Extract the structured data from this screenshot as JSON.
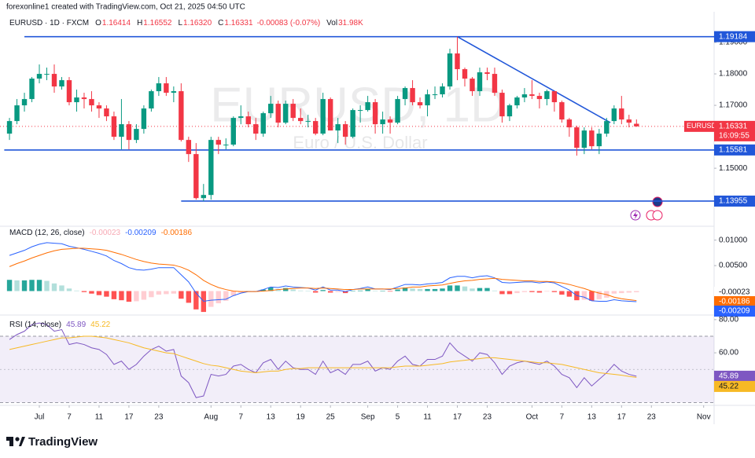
{
  "header": "forexonline1 created with TradingView.com, Oct 21, 2025 04:50 UTC",
  "chart_data": {
    "type": "candlestick",
    "symbol": "EURUSD · 1D · FXCM",
    "legend": [
      {
        "key": "O",
        "text": "1.16414"
      },
      {
        "key": "H",
        "text": "1.16552"
      },
      {
        "key": "L",
        "text": "1.16320"
      },
      {
        "key": "C",
        "text": "1.16331"
      }
    ],
    "change": "-0.00083 (-0.07%)",
    "volume_key": "Vol",
    "volume": "31.98K",
    "watermark": "EURUSD, 1D",
    "description": "Euro / U.S. Dollar",
    "x": [
      0,
      1,
      2,
      3,
      4,
      5,
      6,
      7,
      8,
      9,
      10,
      11,
      12,
      13,
      14,
      15,
      16,
      17,
      18,
      19,
      20,
      21,
      22,
      23,
      24,
      25,
      26,
      27,
      28,
      29,
      30,
      31,
      32,
      33,
      34,
      35,
      36,
      37,
      38,
      39,
      40,
      41,
      42,
      43,
      44,
      45,
      46,
      47,
      48,
      49,
      50,
      51,
      52,
      53,
      54,
      55,
      56,
      57,
      58,
      59,
      60,
      61,
      62,
      63,
      64,
      65,
      66,
      67,
      68,
      69,
      70,
      71,
      72,
      73,
      74,
      75,
      76,
      77,
      78,
      79,
      80,
      81,
      82,
      83,
      84
    ],
    "open": [
      1.161,
      1.165,
      1.17,
      1.172,
      1.1785,
      1.18,
      1.18,
      1.176,
      1.178,
      1.171,
      1.1725,
      1.172,
      1.17,
      1.169,
      1.1665,
      1.16,
      1.164,
      1.159,
      1.1625,
      1.169,
      1.1745,
      1.177,
      1.174,
      1.1745,
      1.159,
      1.1545,
      1.1405,
      1.1415,
      1.159,
      1.1575,
      1.1575,
      1.166,
      1.1665,
      1.164,
      1.161,
      1.1675,
      1.1705,
      1.1645,
      1.1705,
      1.166,
      1.165,
      1.165,
      1.161,
      1.172,
      1.162,
      1.164,
      1.16,
      1.1685,
      1.1685,
      1.171,
      1.164,
      1.1655,
      1.1645,
      1.172,
      1.1755,
      1.171,
      1.17,
      1.1735,
      1.1735,
      1.176,
      1.1865,
      1.1815,
      1.1785,
      1.1745,
      1.1805,
      1.18,
      1.174,
      1.1665,
      1.17,
      1.1725,
      1.1735,
      1.173,
      1.172,
      1.1745,
      1.171,
      1.1655,
      1.163,
      1.1565,
      1.162,
      1.157,
      1.161,
      1.165,
      1.169,
      1.1655,
      1.16414
    ],
    "high": [
      1.166,
      1.172,
      1.174,
      1.179,
      1.183,
      1.182,
      1.183,
      1.179,
      1.179,
      1.175,
      1.174,
      1.1745,
      1.171,
      1.17,
      1.168,
      1.172,
      1.165,
      1.164,
      1.17,
      1.175,
      1.179,
      1.179,
      1.176,
      1.177,
      1.16,
      1.158,
      1.145,
      1.16,
      1.16,
      1.1595,
      1.1665,
      1.17,
      1.168,
      1.166,
      1.168,
      1.173,
      1.1715,
      1.1715,
      1.172,
      1.169,
      1.167,
      1.166,
      1.174,
      1.1725,
      1.166,
      1.165,
      1.169,
      1.17,
      1.173,
      1.172,
      1.168,
      1.1665,
      1.173,
      1.176,
      1.178,
      1.1725,
      1.175,
      1.176,
      1.177,
      1.188,
      1.19184,
      1.182,
      1.179,
      1.182,
      1.182,
      1.182,
      1.175,
      1.1705,
      1.173,
      1.1755,
      1.178,
      1.174,
      1.175,
      1.1745,
      1.1715,
      1.166,
      1.1635,
      1.163,
      1.163,
      1.1625,
      1.166,
      1.17,
      1.173,
      1.167,
      1.16552
    ],
    "low": [
      1.159,
      1.164,
      1.168,
      1.171,
      1.177,
      1.178,
      1.174,
      1.175,
      1.17,
      1.168,
      1.169,
      1.168,
      1.166,
      1.165,
      1.159,
      1.156,
      1.156,
      1.158,
      1.161,
      1.168,
      1.173,
      1.173,
      1.171,
      1.1585,
      1.152,
      1.14,
      1.13955,
      1.14,
      1.1545,
      1.156,
      1.157,
      1.164,
      1.163,
      1.159,
      1.16,
      1.166,
      1.163,
      1.164,
      1.165,
      1.164,
      1.163,
      1.1605,
      1.1605,
      1.162,
      1.158,
      1.1575,
      1.1595,
      1.1645,
      1.168,
      1.161,
      1.161,
      1.161,
      1.164,
      1.17,
      1.17,
      1.169,
      1.1665,
      1.172,
      1.1725,
      1.175,
      1.178,
      1.176,
      1.173,
      1.173,
      1.178,
      1.173,
      1.1645,
      1.165,
      1.169,
      1.171,
      1.172,
      1.169,
      1.17,
      1.168,
      1.1645,
      1.16,
      1.154,
      1.1545,
      1.156,
      1.1545,
      1.16,
      1.164,
      1.164,
      1.163,
      1.1632
    ],
    "close": [
      1.165,
      1.17,
      1.172,
      1.1785,
      1.18,
      1.18,
      1.176,
      1.178,
      1.171,
      1.1725,
      1.172,
      1.17,
      1.169,
      1.1665,
      1.16,
      1.164,
      1.159,
      1.1625,
      1.169,
      1.1745,
      1.177,
      1.174,
      1.1745,
      1.159,
      1.1545,
      1.1405,
      1.1415,
      1.159,
      1.1575,
      1.1575,
      1.166,
      1.1665,
      1.164,
      1.161,
      1.1675,
      1.1705,
      1.1645,
      1.1705,
      1.166,
      1.165,
      1.165,
      1.161,
      1.172,
      1.162,
      1.164,
      1.16,
      1.1685,
      1.1685,
      1.171,
      1.164,
      1.1655,
      1.1645,
      1.172,
      1.1755,
      1.171,
      1.17,
      1.1735,
      1.1735,
      1.176,
      1.1865,
      1.1815,
      1.1785,
      1.1745,
      1.1805,
      1.18,
      1.174,
      1.1665,
      1.17,
      1.1725,
      1.1735,
      1.173,
      1.172,
      1.1745,
      1.171,
      1.1655,
      1.163,
      1.1565,
      1.162,
      1.157,
      1.161,
      1.165,
      1.169,
      1.1655,
      1.1645,
      1.16331
    ],
    "up_color": "#089981",
    "down_color": "#f23645",
    "xlim": [
      -1.27,
      94.4
    ],
    "xticks": [
      {
        "value": 4,
        "label": "Jul"
      },
      {
        "value": 8,
        "label": "7"
      },
      {
        "value": 12,
        "label": "11"
      },
      {
        "value": 16,
        "label": "17"
      },
      {
        "value": 20,
        "label": "23"
      },
      {
        "value": 27,
        "label": "Aug"
      },
      {
        "value": 31,
        "label": "7"
      },
      {
        "value": 35,
        "label": "13"
      },
      {
        "value": 39,
        "label": "19"
      },
      {
        "value": 43,
        "label": "25"
      },
      {
        "value": 48,
        "label": "Sep"
      },
      {
        "value": 52,
        "label": "5"
      },
      {
        "value": 56,
        "label": "11"
      },
      {
        "value": 60,
        "label": "17"
      },
      {
        "value": 64,
        "label": "23"
      },
      {
        "value": 70,
        "label": "Oct"
      },
      {
        "value": 74,
        "label": "7"
      },
      {
        "value": 78,
        "label": "13"
      },
      {
        "value": 82,
        "label": "17"
      },
      {
        "value": 86,
        "label": "23"
      },
      {
        "value": 93,
        "label": "Nov"
      }
    ],
    "ylim": [
      1.1318,
      1.199
    ],
    "yticks": [
      {
        "value": 1.19,
        "label": "1.19000"
      },
      {
        "value": 1.18,
        "label": "1.18000"
      },
      {
        "value": 1.17,
        "label": "1.17000"
      },
      {
        "value": 1.15,
        "label": "1.15000"
      }
    ],
    "levels": [
      {
        "value": 1.19184,
        "from": 2
      },
      {
        "value": 1.15581,
        "from": -0.7
      },
      {
        "value": 1.13955,
        "from": 23
      }
    ],
    "level_color": "#2157d9",
    "trendline": {
      "x": [
        60,
        80.5
      ],
      "y": [
        1.19184,
        1.1645
      ]
    },
    "last": {
      "symbol": "EURUSD",
      "price": 1.16331,
      "countdown": "16:09:55"
    },
    "indicators": [
      {
        "type": "macd",
        "title": "MACD (12, 26, close)",
        "ylim": [
          -0.00455,
          0.01242
        ],
        "yticks": [
          {
            "value": 0.01,
            "label": "0.01000"
          },
          {
            "value": 0.005,
            "label": "0.00500"
          }
        ],
        "histogram": {
          "colors": [
            "#26a69a",
            "#b2dfdb",
            "#ff5252",
            "#ffcdd2"
          ],
          "label_color": "#f7a9b4",
          "values": [
            0.0022,
            0.0021,
            0.0021,
            0.0022,
            0.0022,
            0.002,
            0.0015,
            0.0011,
            0.0005,
            0.0001,
            -0.0002,
            -0.0005,
            -0.0008,
            -0.0011,
            -0.0016,
            -0.0018,
            -0.0021,
            -0.002,
            -0.0017,
            -0.0012,
            -0.0007,
            -0.0006,
            -0.0005,
            -0.0015,
            -0.0023,
            -0.0036,
            -0.0041,
            -0.0031,
            -0.0024,
            -0.0019,
            -0.0009,
            -0.0003,
            0,
            0,
            0.0003,
            0.0007,
            0.0004,
            0.0006,
            0.0003,
            0.0001,
            0,
            -0.0003,
            0.0002,
            -0.0003,
            -0.0002,
            -0.0004,
            0,
            0.0001,
            0.0004,
            0,
            0,
            -0.0001,
            0.0003,
            0.0007,
            0.0005,
            0.0004,
            0.0004,
            0.0004,
            0.0005,
            0.0011,
            0.0011,
            0.0009,
            0.0005,
            0.0006,
            0.0006,
            0.0001,
            -0.0006,
            -0.0006,
            -0.0004,
            -0.0002,
            -0.0002,
            -0.0003,
            -0.0001,
            -0.0002,
            -0.0007,
            -0.0011,
            -0.0018,
            -0.0017,
            -0.0019,
            -0.0016,
            -0.0013,
            -0.0005,
            -0.0004,
            -0.0003,
            -0.00023
          ]
        },
        "series": [
          {
            "color": "#2962ff",
            "values": [
              0.007,
              0.0075,
              0.008,
              0.0087,
              0.0092,
              0.0095,
              0.0094,
              0.0093,
              0.0088,
              0.0085,
              0.0082,
              0.0078,
              0.0074,
              0.0069,
              0.006,
              0.0054,
              0.0046,
              0.0042,
              0.0041,
              0.0043,
              0.0046,
              0.0046,
              0.0046,
              0.0032,
              0.0018,
              -0.0004,
              -0.002,
              -0.0018,
              -0.0017,
              -0.0016,
              -0.0009,
              -0.0004,
              -0.0001,
              -0.0001,
              0.0003,
              0.0008,
              0.0007,
              0.001,
              0.0008,
              0.0007,
              0.0006,
              0.0002,
              0.0008,
              0.0002,
              0.0002,
              -0.0001,
              0.0003,
              0.0005,
              0.0008,
              0.0004,
              0.0004,
              0.0003,
              0.0008,
              0.0013,
              0.0013,
              0.0012,
              0.0014,
              0.0015,
              0.0017,
              0.0026,
              0.0029,
              0.0029,
              0.0026,
              0.0029,
              0.003,
              0.0026,
              0.0017,
              0.0016,
              0.0017,
              0.0018,
              0.0018,
              0.0016,
              0.0018,
              0.0016,
              0.0009,
              0.0002,
              -0.0009,
              -0.0012,
              -0.0019,
              -0.002,
              -0.002,
              -0.0017,
              -0.0019,
              -0.002,
              -0.00209
            ]
          },
          {
            "color": "#ff6d00",
            "values": [
              0.0048,
              0.0054,
              0.0059,
              0.0065,
              0.007,
              0.0075,
              0.0079,
              0.0082,
              0.0083,
              0.0084,
              0.0084,
              0.0083,
              0.0082,
              0.008,
              0.0076,
              0.0072,
              0.0067,
              0.0062,
              0.0058,
              0.0055,
              0.0053,
              0.0052,
              0.0051,
              0.0047,
              0.0041,
              0.0032,
              0.0021,
              0.0013,
              0.0007,
              0.0003,
              0.0,
              -0.0001,
              -0.0001,
              -0.0001,
              0.0,
              0.0001,
              0.0003,
              0.0004,
              0.0005,
              0.0006,
              0.0006,
              0.0005,
              0.0006,
              0.0005,
              0.0004,
              0.0003,
              0.0003,
              0.0004,
              0.0004,
              0.0004,
              0.0004,
              0.0004,
              0.0005,
              0.0006,
              0.0008,
              0.0008,
              0.001,
              0.0011,
              0.0012,
              0.0015,
              0.0018,
              0.002,
              0.0021,
              0.0023,
              0.0024,
              0.0025,
              0.0023,
              0.0022,
              0.0021,
              0.002,
              0.002,
              0.0019,
              0.0019,
              0.0018,
              0.0016,
              0.0013,
              0.0009,
              0.0005,
              0.0,
              -0.0004,
              -0.0007,
              -0.0012,
              -0.0015,
              -0.0017,
              -0.00186
            ]
          }
        ]
      },
      {
        "type": "rsi",
        "title": "RSI (14, close)",
        "ylim": [
          28.8,
          82.3
        ],
        "yticks": [
          {
            "value": 80,
            "label": "80.00"
          },
          {
            "value": 60,
            "label": "60.00"
          }
        ],
        "band": [
          30,
          70
        ],
        "midline": 50,
        "band_color": "#7e57c2",
        "series": [
          {
            "color": "#7e57c2",
            "values": [
              68,
              71,
              73,
              77,
              78,
              77,
              73,
              74,
              65,
              66,
              65,
              63,
              62,
              59,
              53,
              55,
              50,
              53,
              58,
              62,
              64,
              61,
              62,
              46,
              42,
              33,
              34,
              47,
              46,
              47,
              52,
              53,
              50,
              48,
              54,
              56,
              50,
              55,
              51,
              50,
              50,
              47,
              55,
              48,
              50,
              47,
              53,
              53,
              55,
              49,
              51,
              50,
              55,
              58,
              53,
              52,
              56,
              56,
              58,
              66,
              61,
              58,
              55,
              60,
              59,
              54,
              47,
              52,
              54,
              55,
              54,
              53,
              55,
              52,
              47,
              45,
              39,
              45,
              40,
              44,
              48,
              53,
              49,
              47,
              45.89
            ]
          },
          {
            "color": "#f7b924",
            "values": [
              62,
              63,
              64,
              65,
              66,
              67,
              68,
              69,
              69,
              69.5,
              70,
              70,
              69.5,
              69,
              68,
              67,
              66,
              64.5,
              63,
              62,
              61,
              60,
              59.5,
              58,
              56.5,
              55,
              53.5,
              52.5,
              52,
              51,
              50,
              49,
              48.5,
              48,
              48.5,
              49,
              49,
              50,
              50.5,
              50.5,
              51,
              51,
              51,
              51,
              51,
              51,
              51,
              51,
              51,
              51,
              51,
              51,
              51.5,
              52,
              52,
              52,
              52.5,
              53,
              53.5,
              54.5,
              55,
              55.5,
              56,
              56.5,
              57,
              57,
              56.5,
              56,
              55.5,
              55,
              54.5,
              54,
              54,
              53.5,
              53,
              52,
              51,
              50,
              49,
              48,
              47.5,
              47,
              46.5,
              45.8,
              45.22
            ]
          }
        ]
      }
    ]
  },
  "footer": "TradingView"
}
